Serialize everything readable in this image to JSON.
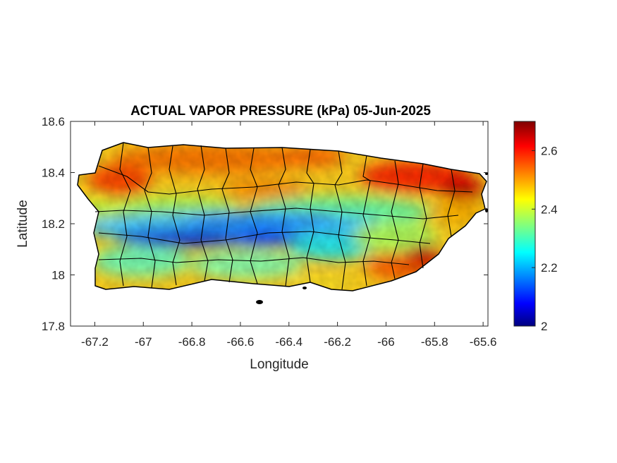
{
  "chart_data": {
    "type": "heatmap",
    "title": "ACTUAL VAPOR PRESSURE (kPa) 05-Jun-2025",
    "xlabel": "Longitude",
    "ylabel": "Latitude",
    "xlim": [
      -67.3,
      -65.58
    ],
    "ylim": [
      17.8,
      18.6
    ],
    "x_ticks": [
      "-67.2",
      "-67",
      "-66.8",
      "-66.6",
      "-66.4",
      "-66.2",
      "-66",
      "-65.8",
      "-65.6"
    ],
    "x_tick_values": [
      -67.2,
      -67.0,
      -66.8,
      -66.6,
      -66.4,
      -66.2,
      -66.0,
      -65.8,
      -65.6
    ],
    "y_ticks": [
      "18.6",
      "18.4",
      "18.2",
      "18",
      "17.8"
    ],
    "y_tick_values": [
      18.6,
      18.4,
      18.2,
      18.0,
      17.8
    ],
    "colorbar": {
      "ticks": [
        "2",
        "2.2",
        "2.4",
        "2.6"
      ],
      "tick_values": [
        2.0,
        2.2,
        2.4,
        2.6
      ],
      "range": [
        2.0,
        2.7
      ],
      "colormap": "jet"
    },
    "region": "Puerto Rico",
    "grid": false
  }
}
